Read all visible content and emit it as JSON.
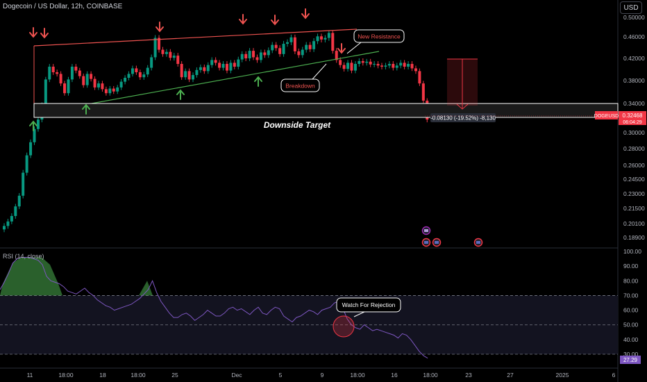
{
  "header": {
    "title": "Dogecoin / US Dollar, 12h, COINBASE",
    "currency_button": "USD"
  },
  "price_axis": {
    "labels": [
      "0.50000",
      "0.46000",
      "0.42000",
      "0.38000",
      "0.34000",
      "0.30000",
      "0.28000",
      "0.26000",
      "0.24500",
      "0.23000",
      "0.21500",
      "0.20100",
      "0.18900"
    ],
    "symbol_tag": "DOGEUSD",
    "current_price": "0.32468",
    "countdown": "06:04:29"
  },
  "rsi": {
    "label": "RSI (14, close)",
    "axis_labels": [
      "100.00",
      "90.00",
      "80.00",
      "70.00",
      "60.00",
      "50.00",
      "40.00",
      "30.00"
    ],
    "current": "27.29",
    "callout": "Watch For Rejection"
  },
  "annotations": {
    "new_resistance": "New Resistance",
    "breakdown": "Breakdown",
    "downside_target": "Downside Target",
    "measure": "-0.08130 (-19.52%) -8,130"
  },
  "time_axis": [
    "11",
    "18:00",
    "18",
    "18:00",
    "25",
    "Dec",
    "5",
    "9",
    "18:00",
    "16",
    "18:00",
    "23",
    "27",
    "2025",
    "6"
  ],
  "colors": {
    "up": "#089981",
    "down": "#f23645",
    "rsi_line": "#7e57c2",
    "uptrend": "#4caf50",
    "resistance": "#ef5350",
    "price_tag": "#f23645"
  },
  "chart_data": {
    "type": "candlestick",
    "title": "Dogecoin / US Dollar, 12h, COINBASE",
    "y_range": [
      0.185,
      0.51
    ],
    "current_price": 0.32468,
    "downside_target_zone": [
      0.3234,
      0.3433
    ],
    "rsi_range": [
      0,
      100
    ],
    "rsi_current": 27.29
  }
}
